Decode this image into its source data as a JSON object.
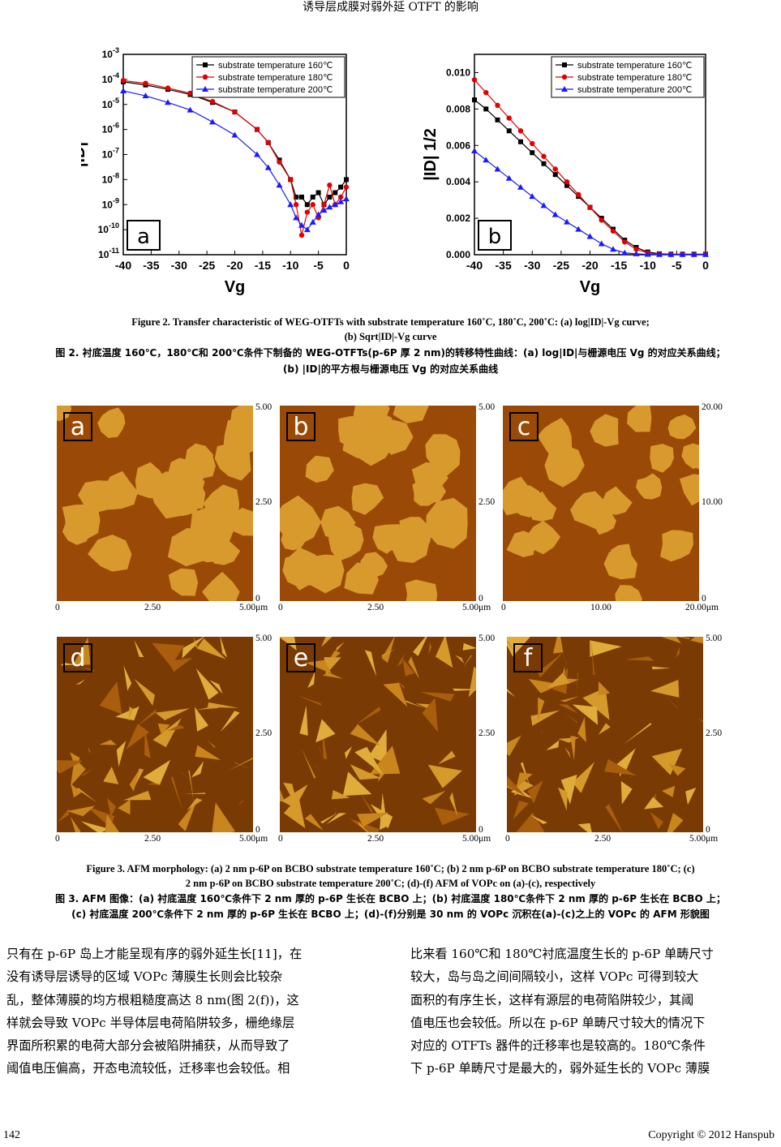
{
  "header": {
    "title": "诱导层成膜对弱外延 OTFT 的影响"
  },
  "chart_data": [
    {
      "type": "line",
      "panel": "a",
      "xlabel": "Vg",
      "ylabel": "|ID|",
      "yscale": "log",
      "xlim": [
        -40,
        0
      ],
      "ylim": [
        1e-11,
        0.001
      ],
      "xticks": [
        "-40",
        "-35",
        "-30",
        "-25",
        "-20",
        "-15",
        "-10",
        "-5",
        "0"
      ],
      "yticks": [
        "10-11",
        "10-10",
        "10-9",
        "10-8",
        "10-7",
        "10-6",
        "10-5",
        "10-4",
        "10-3"
      ],
      "legend_position": "top-right",
      "series": [
        {
          "name": "substrate temperature 160℃",
          "color": "#000000",
          "marker": "square",
          "x": [
            -40,
            -36,
            -32,
            -28,
            -24,
            -20,
            -16,
            -14,
            -12,
            -10,
            -9,
            -8,
            -7,
            -6,
            -5,
            -4,
            -3,
            -2,
            -1,
            0
          ],
          "y": [
            8e-05,
            6e-05,
            4e-05,
            2.5e-05,
            1.2e-05,
            5e-06,
            1e-06,
            3e-07,
            6e-08,
            1e-08,
            2e-09,
            2e-09,
            1e-09,
            2e-09,
            3e-09,
            1e-09,
            2e-09,
            3e-09,
            5e-09,
            1e-08
          ]
        },
        {
          "name": "substrate temperature 180℃",
          "color": "#e00000",
          "marker": "circle",
          "x": [
            -40,
            -36,
            -32,
            -28,
            -24,
            -20,
            -16,
            -14,
            -12,
            -10,
            -9,
            -8,
            -7,
            -6,
            -5,
            -4,
            -3,
            -2,
            -1,
            0
          ],
          "y": [
            9e-05,
            7e-05,
            4.5e-05,
            2.8e-05,
            1.3e-05,
            5e-06,
            1e-06,
            3e-07,
            5e-08,
            1e-08,
            1e-09,
            6e-11,
            5e-10,
            1e-09,
            3e-10,
            1e-09,
            6e-09,
            1e-09,
            2e-09,
            5e-09
          ]
        },
        {
          "name": "substrate temperature 200℃",
          "color": "#1a1aff",
          "marker": "triangle",
          "x": [
            -40,
            -36,
            -32,
            -28,
            -24,
            -20,
            -16,
            -14,
            -12,
            -10,
            -9,
            -8,
            -7,
            -6,
            -5,
            -4,
            -3,
            -2,
            -1,
            0
          ],
          "y": [
            3.5e-05,
            2.2e-05,
            1.2e-05,
            6e-06,
            2e-06,
            6e-07,
            1e-07,
            3e-08,
            6e-09,
            1e-09,
            3e-10,
            1.5e-10,
            1e-10,
            2e-10,
            4e-10,
            6e-10,
            8e-10,
            1e-09,
            1.3e-09,
            1.7e-09
          ]
        }
      ]
    },
    {
      "type": "line",
      "panel": "b",
      "xlabel": "Vg",
      "ylabel": "|ID| 1/2",
      "xlim": [
        -40,
        0
      ],
      "ylim": [
        0,
        0.011
      ],
      "xticks": [
        "-40",
        "-35",
        "-30",
        "-25",
        "-20",
        "-15",
        "-10",
        "-5",
        "0"
      ],
      "yticks": [
        "0.000",
        "0.002",
        "0.004",
        "0.006",
        "0.008",
        "0.010"
      ],
      "legend_position": "top-right",
      "series": [
        {
          "name": "substrate temperature 160℃",
          "color": "#000000",
          "marker": "square",
          "x": [
            -40,
            -38,
            -36,
            -34,
            -32,
            -30,
            -28,
            -26,
            -24,
            -22,
            -20,
            -18,
            -16,
            -14,
            -12,
            -10,
            -8,
            -6,
            -4,
            -2,
            0
          ],
          "y": [
            0.0085,
            0.008,
            0.0074,
            0.0068,
            0.0062,
            0.0056,
            0.005,
            0.0044,
            0.0038,
            0.0032,
            0.0026,
            0.002,
            0.0014,
            0.0008,
            0.0004,
            0.00015,
            5e-05,
            3e-05,
            3e-05,
            3e-05,
            3e-05
          ]
        },
        {
          "name": "substrate temperature 180℃",
          "color": "#e00000",
          "marker": "circle",
          "x": [
            -40,
            -38,
            -36,
            -34,
            -32,
            -30,
            -28,
            -26,
            -24,
            -22,
            -20,
            -18,
            -16,
            -14,
            -12,
            -10,
            -8,
            -6,
            -4,
            -2,
            0
          ],
          "y": [
            0.0096,
            0.0089,
            0.0082,
            0.0075,
            0.0068,
            0.0061,
            0.0054,
            0.0047,
            0.004,
            0.0033,
            0.0026,
            0.0019,
            0.0013,
            0.0007,
            0.0003,
            0.0001,
            3e-05,
            2e-05,
            2e-05,
            2e-05,
            2e-05
          ]
        },
        {
          "name": "substrate temperature 200℃",
          "color": "#1a1aff",
          "marker": "triangle",
          "x": [
            -40,
            -38,
            -36,
            -34,
            -32,
            -30,
            -28,
            -26,
            -24,
            -22,
            -20,
            -18,
            -16,
            -14,
            -12,
            -10,
            -8,
            -6,
            -4,
            -2,
            0
          ],
          "y": [
            0.0057,
            0.0052,
            0.0047,
            0.0042,
            0.0037,
            0.0032,
            0.0027,
            0.0022,
            0.0018,
            0.0014,
            0.001,
            0.0006,
            0.0003,
            0.0001,
            5e-05,
            2e-05,
            1e-05,
            1e-05,
            1e-05,
            1e-05,
            1e-05
          ]
        }
      ]
    }
  ],
  "figure2": {
    "caption_en_1": "Figure 2. Transfer characteristic of WEG-OTFTs with substrate temperature 160˚C, 180˚C, 200˚C: (a) log|ID|-Vg curve;",
    "caption_en_2": "(b) Sqrt|ID|-Vg curve",
    "caption_zh_1": "图 2. 衬底温度 160℃，180℃和 200℃条件下制备的 WEG-OTFTs(p-6P 厚 2 nm)的转移特性曲线：(a) log|ID|与栅源电压 Vg 的对应关系曲线；",
    "caption_zh_2": "(b) |ID|的平方根与栅源电压 Vg 的对应关系曲线"
  },
  "figure3": {
    "panels": [
      {
        "tag": "a",
        "y_top": "5.00",
        "y_mid": "2.50",
        "y_bot": "0",
        "x_left": "0",
        "x_mid": "2.50",
        "x_right": "5.00",
        "unit": "μm"
      },
      {
        "tag": "b",
        "y_top": "5.00",
        "y_mid": "2.50",
        "y_bot": "0",
        "x_left": "0",
        "x_mid": "2.50",
        "x_right": "5.00",
        "unit": "μm"
      },
      {
        "tag": "c",
        "y_top": "20.00",
        "y_mid": "10.00",
        "y_bot": "0",
        "x_left": "0",
        "x_mid": "10.00",
        "x_right": "20.00",
        "unit": "μm"
      },
      {
        "tag": "d",
        "y_top": "5.00",
        "y_mid": "2.50",
        "y_bot": "0",
        "x_left": "0",
        "x_mid": "2.50",
        "x_right": "5.00",
        "unit": "μm"
      },
      {
        "tag": "e",
        "y_top": "5.00",
        "y_mid": "2.50",
        "y_bot": "0",
        "x_left": "0",
        "x_mid": "2.50",
        "x_right": "5.00",
        "unit": "μm"
      },
      {
        "tag": "f",
        "y_top": "5.00",
        "y_mid": "2.50",
        "y_bot": "0",
        "x_left": "0",
        "x_mid": "2.50",
        "x_right": "5.00",
        "unit": "μm"
      }
    ],
    "caption_en_1": "Figure 3. AFM morphology: (a) 2 nm p-6P on BCBO substrate temperature 160˚C; (b) 2 nm p-6P on BCBO substrate temperature 180˚C; (c)",
    "caption_en_2": "2 nm p-6P on BCBO substrate temperature 200˚C; (d)-(f) AFM of VOPc on (a)-(c), respectively",
    "caption_zh_1": "图 3. AFM 图像：(a) 衬底温度 160℃条件下 2 nm 厚的 p-6P 生长在 BCBO 上；(b) 衬底温度 180℃条件下 2 nm 厚的 p-6P 生长在 BCBO 上；",
    "caption_zh_2": "(c) 衬底温度 200℃条件下 2 nm 厚的 p-6P 生长在 BCBO 上；(d)-(f)分别是 30 nm 的 VOPc 沉积在(a)-(c)之上的 VOPc 的 AFM 形貌图"
  },
  "body": {
    "left": [
      "只有在 p-6P 岛上才能呈现有序的弱外延生长[11]，在",
      "没有诱导层诱导的区域 VOPc 薄膜生长则会比较杂",
      "乱，整体薄膜的均方根粗糙度高达 8 nm(图 2(f))，这",
      "样就会导致 VOPc 半导体层电荷陷阱较多，栅绝缘层",
      "界面所积累的电荷大部分会被陷阱捕获，从而导致了",
      "阈值电压偏高，开态电流较低，迁移率也会较低。相"
    ],
    "right": [
      "比来看 160℃和 180℃衬底温度生长的 p-6P 单畴尺寸",
      "较大，岛与岛之间间隔较小，这样 VOPc 可得到较大",
      "面积的有序生长，这样有源层的电荷陷阱较少，其阈",
      "值电压也会较低。所以在 p-6P 单畴尺寸较大的情况下",
      "对应的 OTFTs 器件的迁移率也是较高的。180℃条件",
      "下 p-6P 单畴尺寸是最大的，弱外延生长的 VOPc 薄膜"
    ]
  },
  "footer": {
    "page": "142",
    "copyright": "Copyright © 2012 Hanspub"
  }
}
